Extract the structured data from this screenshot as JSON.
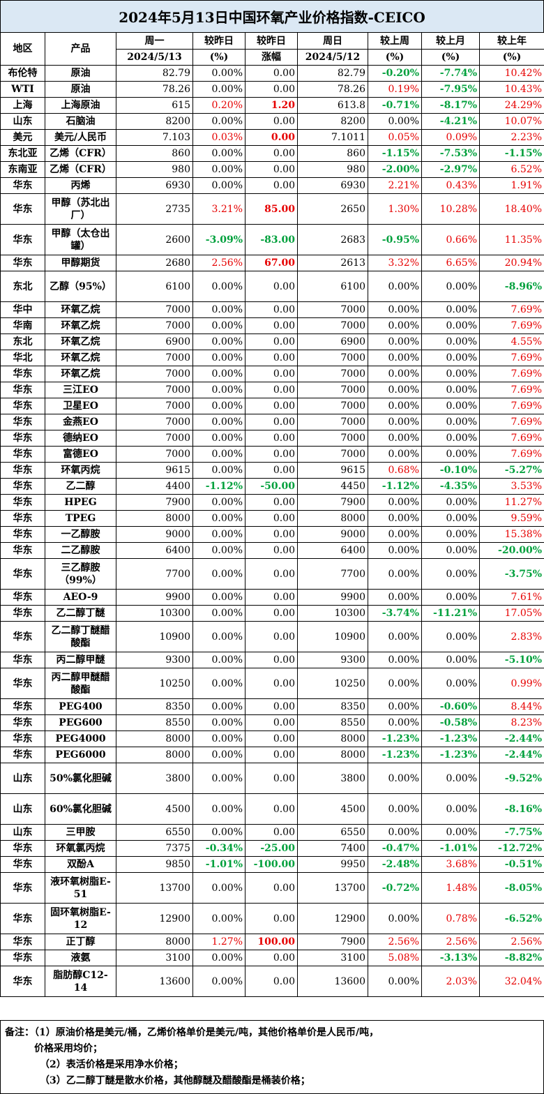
{
  "title": "2024年5月13日中国环氧产业价格指数-CEICO",
  "headers": {
    "region": "地区",
    "product": "产品",
    "today": "周一",
    "today_date": "2024/5/13",
    "chg_pct": "较昨日",
    "chg_pct_unit": "(%)",
    "chg_abs": "较昨日",
    "chg_abs_unit": "涨幅",
    "prev": "周日",
    "prev_date": "2024/5/12",
    "wk": "较上周",
    "wk_unit": "(%)",
    "mo": "较上月",
    "mo_unit": "(%)",
    "yr": "较上年",
    "yr_unit": "(%)"
  },
  "rows": [
    [
      "布伦特",
      "原油",
      "82.79",
      "0.00%",
      "0.00",
      "82.79",
      "-0.20%",
      "-7.74%",
      "10.42%"
    ],
    [
      "WTI",
      "原油",
      "78.26",
      "0.00%",
      "0.00",
      "78.26",
      "0.19%",
      "-7.95%",
      "10.43%"
    ],
    [
      "上海",
      "上海原油",
      "615",
      "0.20%",
      "1.20",
      "613.8",
      "-0.71%",
      "-8.17%",
      "24.29%"
    ],
    [
      "山东",
      "石脑油",
      "8200",
      "0.00%",
      "0.00",
      "8200",
      "0.00%",
      "-4.21%",
      "10.07%"
    ],
    [
      "美元",
      "美元/人民币",
      "7.103",
      "0.03%",
      "0.00",
      "7.1011",
      "0.05%",
      "0.09%",
      "2.23%"
    ],
    [
      "东北亚",
      "乙烯（CFR）",
      "860",
      "0.00%",
      "0.00",
      "860",
      "-1.15%",
      "-7.53%",
      "-1.15%"
    ],
    [
      "东南亚",
      "乙烯（CFR）",
      "980",
      "0.00%",
      "0.00",
      "980",
      "-2.00%",
      "-2.97%",
      "6.52%"
    ],
    [
      "华东",
      "丙烯",
      "6930",
      "0.00%",
      "0.00",
      "6930",
      "2.21%",
      "0.43%",
      "1.91%"
    ],
    [
      "华东",
      "甲醇（苏北出厂）",
      "2735",
      "3.21%",
      "85.00",
      "2650",
      "1.30%",
      "10.28%",
      "18.40%"
    ],
    [
      "华东",
      "甲醇（太仓出罐）",
      "2600",
      "-3.09%",
      "-83.00",
      "2683",
      "-0.95%",
      "0.66%",
      "11.35%"
    ],
    [
      "华东",
      "甲醇期货",
      "2680",
      "2.56%",
      "67.00",
      "2613",
      "3.32%",
      "6.65%",
      "20.94%"
    ],
    [
      "东北",
      "乙醇（95%）",
      "6100",
      "0.00%",
      "0.00",
      "6100",
      "0.00%",
      "0.00%",
      "-8.96%"
    ],
    [
      "华中",
      "环氧乙烷",
      "7000",
      "0.00%",
      "0.00",
      "7000",
      "0.00%",
      "0.00%",
      "7.69%"
    ],
    [
      "华南",
      "环氧乙烷",
      "7000",
      "0.00%",
      "0.00",
      "7000",
      "0.00%",
      "0.00%",
      "7.69%"
    ],
    [
      "东北",
      "环氧乙烷",
      "6900",
      "0.00%",
      "0.00",
      "6900",
      "0.00%",
      "0.00%",
      "4.55%"
    ],
    [
      "华北",
      "环氧乙烷",
      "7000",
      "0.00%",
      "0.00",
      "7000",
      "0.00%",
      "0.00%",
      "7.69%"
    ],
    [
      "华东",
      "环氧乙烷",
      "7000",
      "0.00%",
      "0.00",
      "7000",
      "0.00%",
      "0.00%",
      "7.69%"
    ],
    [
      "华东",
      "三江EO",
      "7000",
      "0.00%",
      "0.00",
      "7000",
      "0.00%",
      "0.00%",
      "7.69%"
    ],
    [
      "华东",
      "卫星EO",
      "7000",
      "0.00%",
      "0.00",
      "7000",
      "0.00%",
      "0.00%",
      "7.69%"
    ],
    [
      "华东",
      "金燕EO",
      "7000",
      "0.00%",
      "0.00",
      "7000",
      "0.00%",
      "0.00%",
      "7.69%"
    ],
    [
      "华东",
      "德纳EO",
      "7000",
      "0.00%",
      "0.00",
      "7000",
      "0.00%",
      "0.00%",
      "7.69%"
    ],
    [
      "华东",
      "富德EO",
      "7000",
      "0.00%",
      "0.00",
      "7000",
      "0.00%",
      "0.00%",
      "7.69%"
    ],
    [
      "华东",
      "环氧丙烷",
      "9615",
      "0.00%",
      "0.00",
      "9615",
      "0.68%",
      "-0.10%",
      "-5.27%"
    ],
    [
      "华东",
      "乙二醇",
      "4400",
      "-1.12%",
      "-50.00",
      "4450",
      "-1.12%",
      "-4.35%",
      "3.53%"
    ],
    [
      "华东",
      "HPEG",
      "7900",
      "0.00%",
      "0.00",
      "7900",
      "0.00%",
      "0.00%",
      "11.27%"
    ],
    [
      "华东",
      "TPEG",
      "8000",
      "0.00%",
      "0.00",
      "8000",
      "0.00%",
      "0.00%",
      "9.59%"
    ],
    [
      "华东",
      "一乙醇胺",
      "9000",
      "0.00%",
      "0.00",
      "9000",
      "0.00%",
      "0.00%",
      "15.38%"
    ],
    [
      "华东",
      "二乙醇胺",
      "6400",
      "0.00%",
      "0.00",
      "6400",
      "0.00%",
      "0.00%",
      "-20.00%"
    ],
    [
      "华东",
      "三乙醇胺（99%）",
      "7700",
      "0.00%",
      "0.00",
      "7700",
      "0.00%",
      "0.00%",
      "-3.75%"
    ],
    [
      "华东",
      "AEO-9",
      "9900",
      "0.00%",
      "0.00",
      "9900",
      "0.00%",
      "0.00%",
      "7.61%"
    ],
    [
      "华东",
      "乙二醇丁醚",
      "10300",
      "0.00%",
      "0.00",
      "10300",
      "-3.74%",
      "-11.21%",
      "17.05%"
    ],
    [
      "华东",
      "乙二醇丁醚醋酸酯",
      "10900",
      "0.00%",
      "0.00",
      "10900",
      "0.00%",
      "0.00%",
      "2.83%"
    ],
    [
      "华东",
      "丙二醇甲醚",
      "9300",
      "0.00%",
      "0.00",
      "9300",
      "0.00%",
      "0.00%",
      "-5.10%"
    ],
    [
      "华东",
      "丙二醇甲醚醋酸酯",
      "10250",
      "0.00%",
      "0.00",
      "10250",
      "0.00%",
      "0.00%",
      "0.99%"
    ],
    [
      "华东",
      "PEG400",
      "8350",
      "0.00%",
      "0.00",
      "8350",
      "0.00%",
      "-0.60%",
      "8.44%"
    ],
    [
      "华东",
      "PEG600",
      "8550",
      "0.00%",
      "0.00",
      "8550",
      "0.00%",
      "-0.58%",
      "8.23%"
    ],
    [
      "华东",
      "PEG4000",
      "8000",
      "0.00%",
      "0.00",
      "8000",
      "-1.23%",
      "-1.23%",
      "-2.44%"
    ],
    [
      "华东",
      "PEG6000",
      "8000",
      "0.00%",
      "0.00",
      "8000",
      "-1.23%",
      "-1.23%",
      "-2.44%"
    ],
    [
      "山东",
      "50%氯化胆碱",
      "3800",
      "0.00%",
      "0.00",
      "3800",
      "0.00%",
      "0.00%",
      "-9.52%"
    ],
    [
      "山东",
      "60%氯化胆碱",
      "4500",
      "0.00%",
      "0.00",
      "4500",
      "0.00%",
      "0.00%",
      "-8.16%"
    ],
    [
      "山东",
      "三甲胺",
      "6550",
      "0.00%",
      "0.00",
      "6550",
      "0.00%",
      "0.00%",
      "-7.75%"
    ],
    [
      "华东",
      "环氧氯丙烷",
      "7375",
      "-0.34%",
      "-25.00",
      "7400",
      "-0.47%",
      "-1.01%",
      "-12.72%"
    ],
    [
      "华东",
      "双酚A",
      "9850",
      "-1.01%",
      "-100.00",
      "9950",
      "-2.48%",
      "3.68%",
      "-0.51%"
    ],
    [
      "华东",
      "液环氧树脂E-51",
      "13700",
      "0.00%",
      "0.00",
      "13700",
      "-0.72%",
      "1.48%",
      "-8.05%"
    ],
    [
      "华东",
      "固环氧树脂E-12",
      "12900",
      "0.00%",
      "0.00",
      "12900",
      "0.00%",
      "0.78%",
      "-6.52%"
    ],
    [
      "华东",
      "正丁醇",
      "8000",
      "1.27%",
      "100.00",
      "7900",
      "2.56%",
      "2.56%",
      "2.56%"
    ],
    [
      "华东",
      "液氨",
      "3100",
      "0.00%",
      "0.00",
      "3100",
      "5.08%",
      "-3.13%",
      "-8.82%"
    ],
    [
      "华东",
      "脂肪醇C12-14",
      "13600",
      "0.00%",
      "0.00",
      "13600",
      "0.00%",
      "2.03%",
      "32.04%"
    ]
  ],
  "notes": {
    "line1": "备注：（1）原油价格是美元/桶，乙烯价格单价是美元/吨，其他价格单价是人民币/吨，",
    "line2": "价格采用均价；",
    "line3": "（2）表活价格是采用净水价格；",
    "line4": "（3）乙二醇丁醚是散水价格，其他醇醚及醋酸酯是桶装价格；"
  },
  "colors": {
    "title_bg": "#dbe8f4",
    "up": "#e60000",
    "down": "#00a03c"
  }
}
